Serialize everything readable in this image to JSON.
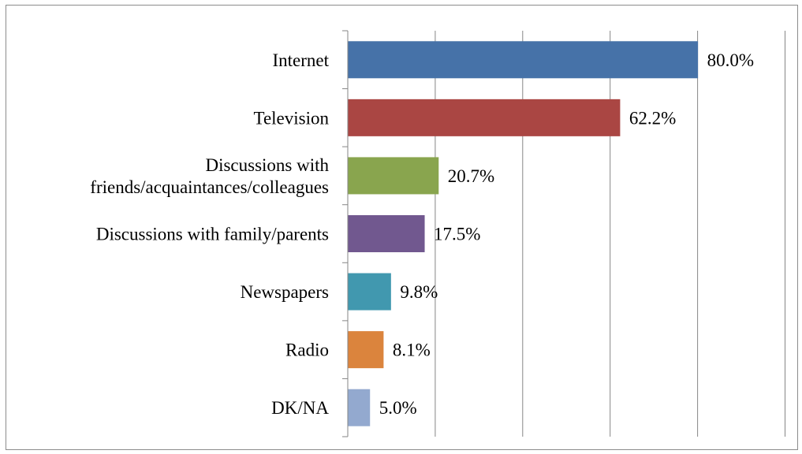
{
  "chart_data": {
    "type": "bar",
    "orientation": "horizontal",
    "title": "",
    "xlabel": "",
    "ylabel": "",
    "xlim": [
      0,
      100
    ],
    "grid": true,
    "legend": "none",
    "categories": [
      [
        "Internet"
      ],
      [
        "Television"
      ],
      [
        "Discussions with",
        "friends/acquaintances/colleagues"
      ],
      [
        "Discussions with family/parents"
      ],
      [
        "Newspapers"
      ],
      [
        "Radio"
      ],
      [
        "DK/NA"
      ]
    ],
    "values": [
      80.0,
      62.2,
      20.7,
      17.5,
      9.8,
      8.1,
      5.0
    ],
    "value_labels": [
      "80.0%",
      "62.2%",
      "20.7%",
      "17.5%",
      "9.8%",
      "8.1%",
      "5.0%"
    ],
    "colors": [
      "#4672a8",
      "#aa4643",
      "#89a54e",
      "#71588f",
      "#4198af",
      "#db843d",
      "#93a9cf"
    ]
  }
}
